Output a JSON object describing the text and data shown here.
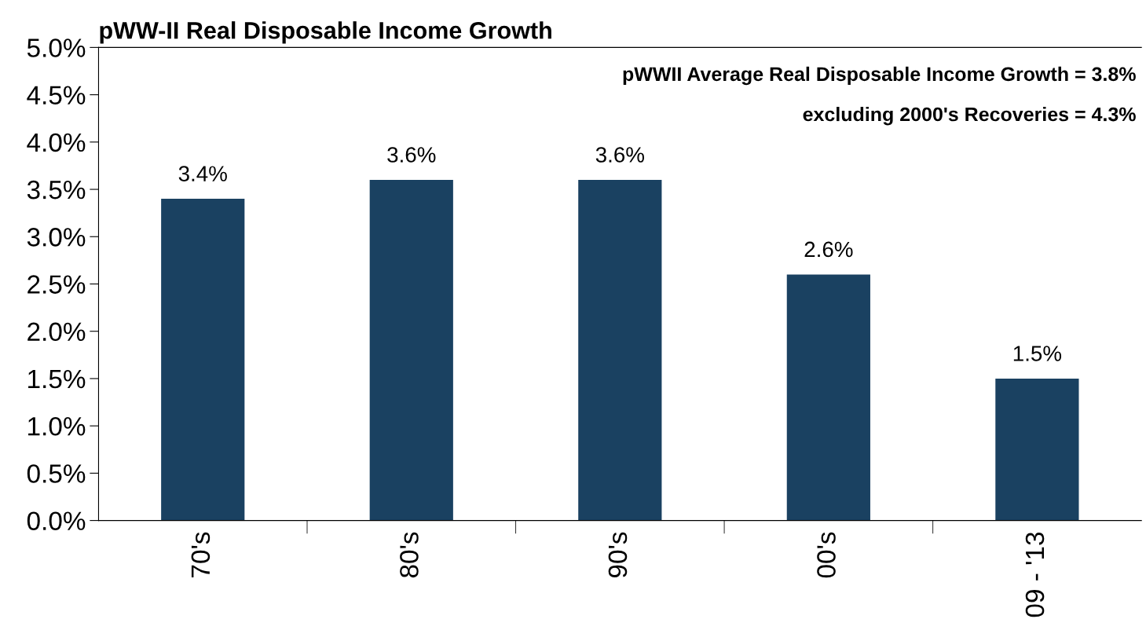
{
  "chart_data": {
    "type": "bar",
    "title": "pWW-II Real Disposable Income Growth",
    "categories": [
      "70's",
      "80's",
      "90's",
      "00's",
      "09 - '13"
    ],
    "values": [
      3.4,
      3.6,
      3.6,
      2.6,
      1.5
    ],
    "value_labels": [
      "3.4%",
      "3.6%",
      "3.6%",
      "2.6%",
      "1.5%"
    ],
    "color": "#1a4161",
    "ylim": [
      0,
      5
    ],
    "yticks": [
      {
        "value": 0,
        "label": "0.0%"
      },
      {
        "value": 0.5,
        "label": "0.5%"
      },
      {
        "value": 1,
        "label": "1.0%"
      },
      {
        "value": 1.5,
        "label": "1.5%"
      },
      {
        "value": 2,
        "label": "2.0%"
      },
      {
        "value": 2.5,
        "label": "2.5%"
      },
      {
        "value": 3,
        "label": "3.0%"
      },
      {
        "value": 3.5,
        "label": "3.5%"
      },
      {
        "value": 4,
        "label": "4.0%"
      },
      {
        "value": 4.5,
        "label": "4.5%"
      },
      {
        "value": 5,
        "label": "5.0%"
      }
    ],
    "annotations": [
      "pWWII Average Real Disposable Income Growth = 3.8%",
      "excluding 2000's Recoveries = 4.3%"
    ],
    "grid": false,
    "legend": false
  }
}
